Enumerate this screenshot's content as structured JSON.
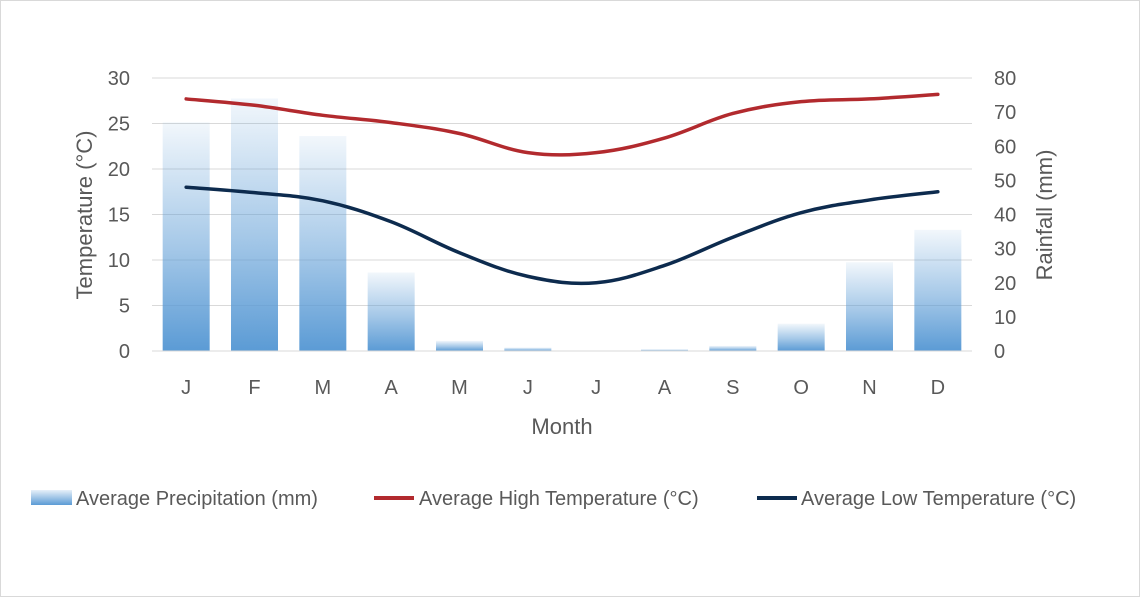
{
  "chart_data": {
    "type": "bar+line",
    "categories": [
      "J",
      "F",
      "M",
      "A",
      "M",
      "J",
      "J",
      "A",
      "S",
      "O",
      "N",
      "D"
    ],
    "xlabel": "Month",
    "ylabel_left": "Temperature (°C)",
    "ylabel_right": "Rainfall (mm)",
    "ylim_left": [
      0,
      30
    ],
    "ylim_right": [
      0,
      80
    ],
    "yticks_left": [
      "0",
      "5",
      "10",
      "15",
      "20",
      "25",
      "30"
    ],
    "yticks_right": [
      "0",
      "10",
      "20",
      "30",
      "40",
      "50",
      "60",
      "70",
      "80"
    ],
    "grid": true,
    "legend_position": "bottom",
    "series": [
      {
        "name": "Average Precipitation (mm)",
        "type": "bar",
        "axis": "right",
        "color": "#5b9bd5",
        "values": [
          67,
          74,
          63,
          23,
          3,
          1,
          0,
          0.5,
          1.5,
          8,
          26,
          35.5
        ]
      },
      {
        "name": "Average High Temperature (°C)",
        "type": "line",
        "axis": "left",
        "color": "#b22a2e",
        "values": [
          27.7,
          27.0,
          25.9,
          25.1,
          23.9,
          21.8,
          21.8,
          23.4,
          26.1,
          27.4,
          27.7,
          28.2
        ]
      },
      {
        "name": "Average Low Temperature (°C)",
        "type": "line",
        "axis": "left",
        "color": "#0d2b4e",
        "values": [
          18.0,
          17.4,
          16.5,
          14.2,
          10.8,
          8.2,
          7.5,
          9.4,
          12.5,
          15.2,
          16.6,
          17.5
        ]
      }
    ]
  }
}
